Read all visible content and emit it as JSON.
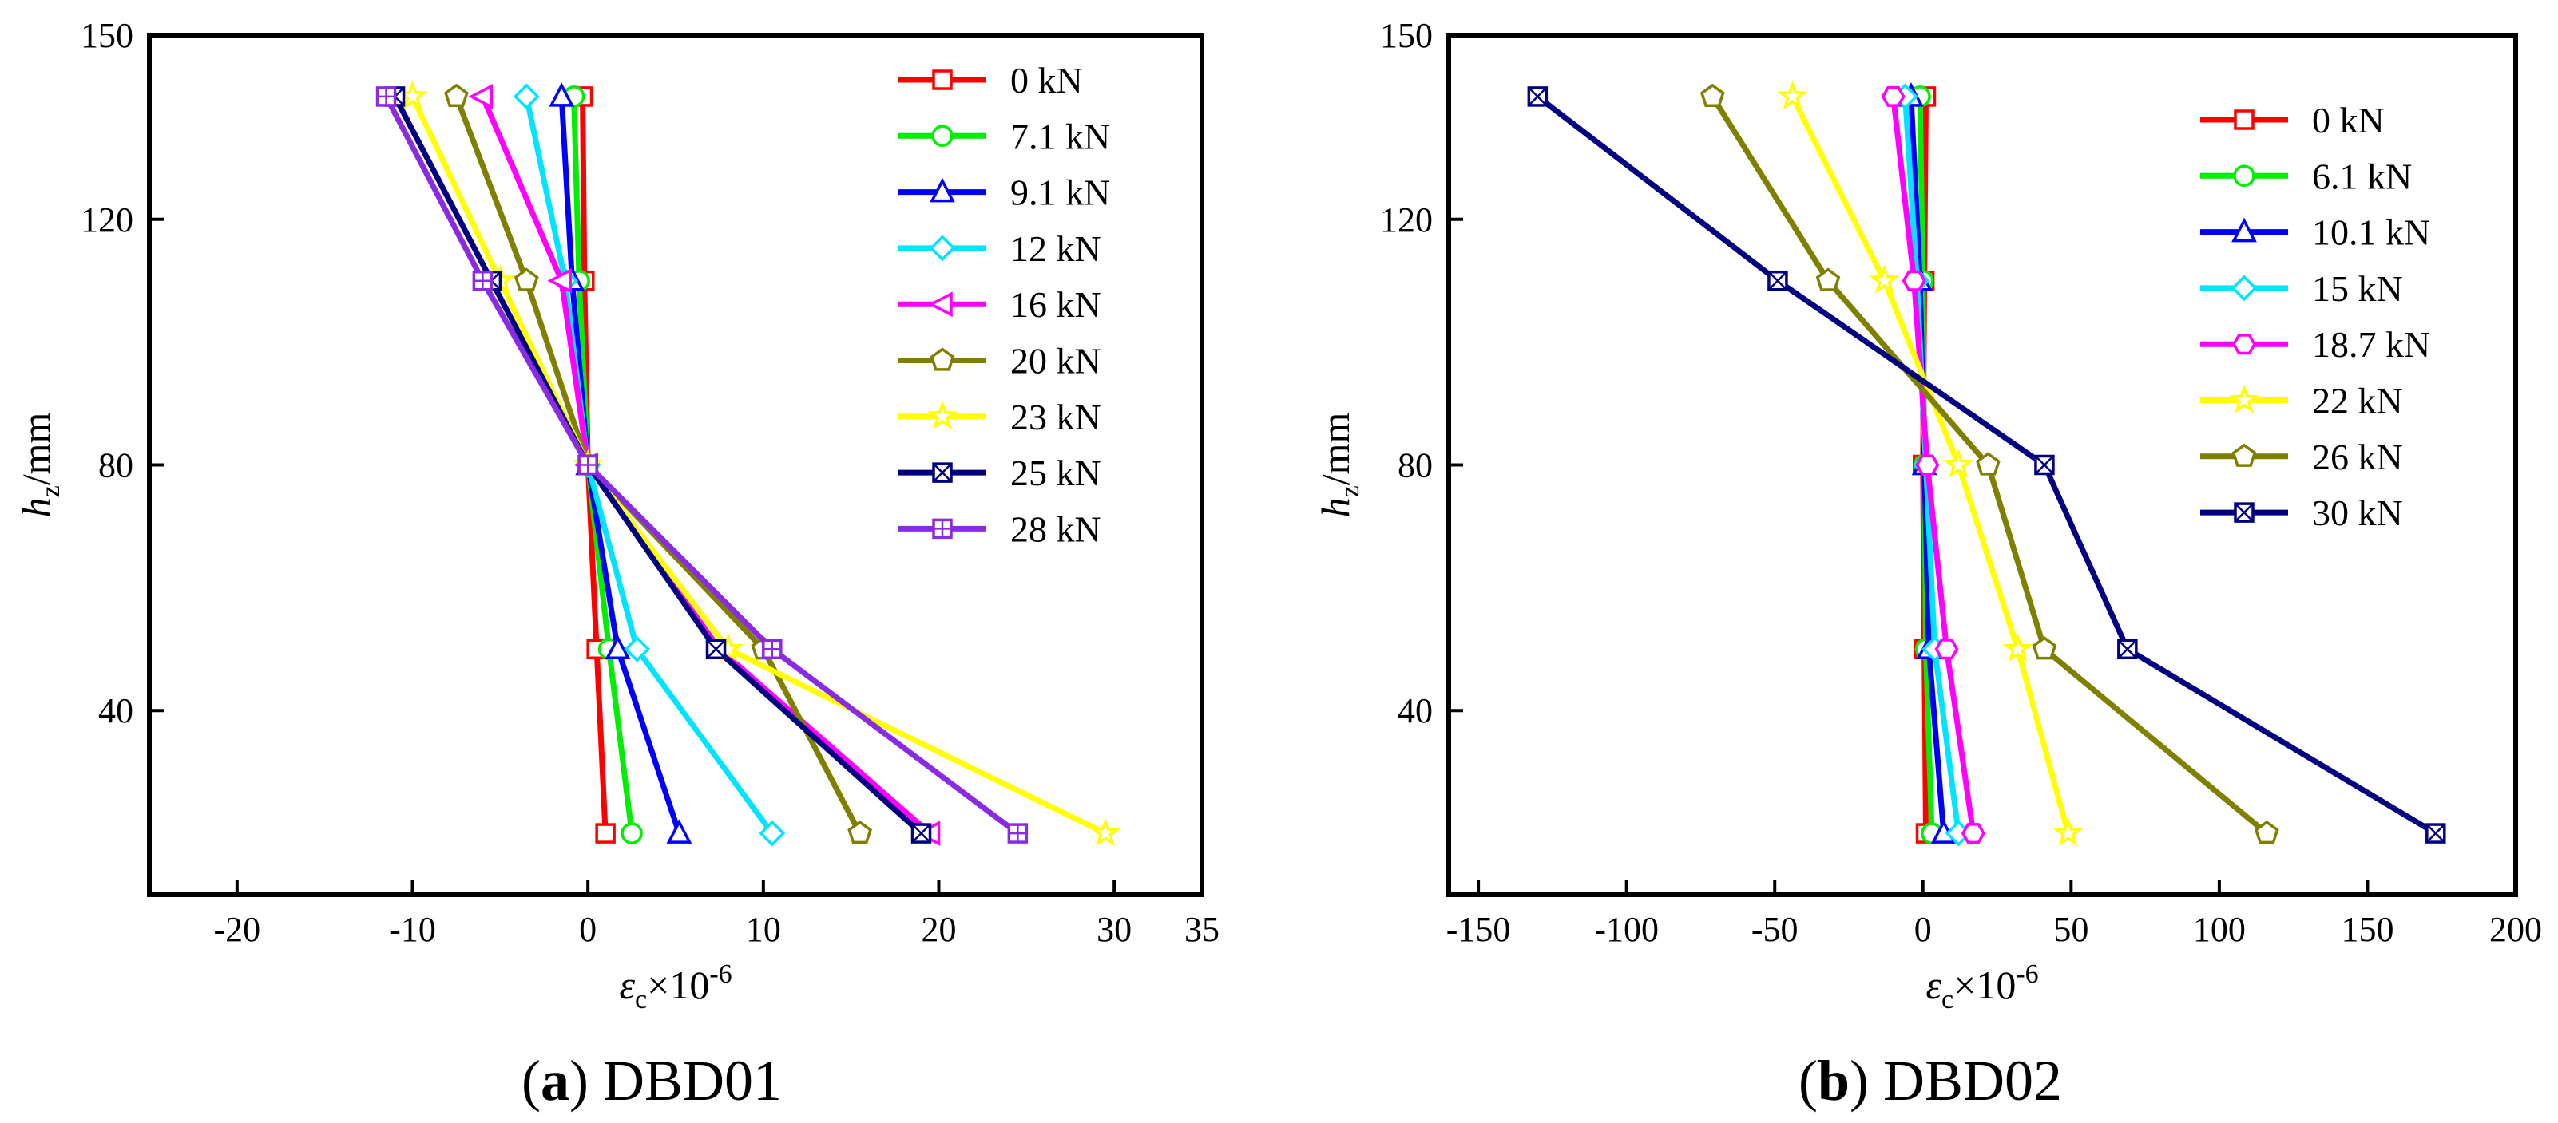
{
  "chart_data": [
    {
      "type": "line",
      "panel_label": "(a)",
      "caption_letter": "a",
      "caption_name": "DBD01",
      "xlabel_symbol": "ε",
      "xlabel_sub": "c",
      "xlabel_rest": "×10",
      "xlabel_exp": "-6",
      "ylabel_symbol": "h",
      "ylabel_sub": "z",
      "ylabel_rest": "/mm",
      "xlim": [
        -25,
        35
      ],
      "ylim": [
        10,
        150
      ],
      "xticks": [
        -20,
        -10,
        0,
        10,
        20,
        30,
        35
      ],
      "yticks": [
        40,
        80,
        120,
        150
      ],
      "y": [
        20,
        50,
        80,
        110,
        140
      ],
      "series": [
        {
          "name": "0 kN",
          "color": "#ff0000",
          "marker": "square",
          "x": [
            1,
            0.5,
            0,
            -0.2,
            -0.3
          ]
        },
        {
          "name": "7.1 kN",
          "color": "#00ee00",
          "marker": "circle",
          "x": [
            2.5,
            1.2,
            0,
            -0.5,
            -0.8
          ]
        },
        {
          "name": "9.1 kN",
          "color": "#0000ff",
          "marker": "triangle-up",
          "x": [
            5.2,
            1.7,
            0,
            -0.9,
            -1.5
          ]
        },
        {
          "name": "12 kN",
          "color": "#00e5ff",
          "marker": "diamond",
          "x": [
            10.5,
            2.8,
            0,
            -1.3,
            -3.5
          ]
        },
        {
          "name": "16 kN",
          "color": "#ff00ff",
          "marker": "triangle-left",
          "x": [
            19.5,
            7.5,
            0,
            -1.5,
            -6
          ]
        },
        {
          "name": "20 kN",
          "color": "#808000",
          "marker": "pentagon",
          "x": [
            15.5,
            10,
            0,
            -3.5,
            -7.5
          ]
        },
        {
          "name": "23 kN",
          "color": "#ffff00",
          "marker": "star",
          "x": [
            29.5,
            8,
            0,
            -5,
            -10
          ]
        },
        {
          "name": "25 kN",
          "color": "#000080",
          "marker": "square-x",
          "x": [
            19,
            7.3,
            0,
            -5.5,
            -11
          ]
        },
        {
          "name": "28 kN",
          "color": "#8a2be2",
          "marker": "square-plus",
          "x": [
            24.5,
            10.5,
            0,
            -6,
            -11.5
          ]
        }
      ]
    },
    {
      "type": "line",
      "panel_label": "(b)",
      "caption_letter": "b",
      "caption_name": "DBD02",
      "xlabel_symbol": "ε",
      "xlabel_sub": "c",
      "xlabel_rest": "×10",
      "xlabel_exp": "-6",
      "ylabel_symbol": "h",
      "ylabel_sub": "z",
      "ylabel_rest": "/mm",
      "xlim": [
        -160,
        200
      ],
      "ylim": [
        10,
        150
      ],
      "xticks": [
        -150,
        -100,
        -50,
        0,
        50,
        100,
        150,
        200
      ],
      "yticks": [
        40,
        80,
        120,
        150
      ],
      "y": [
        20,
        50,
        80,
        110,
        140
      ],
      "series": [
        {
          "name": "0 kN",
          "color": "#ff0000",
          "marker": "square",
          "x": [
            1,
            0.5,
            0,
            0.5,
            1
          ]
        },
        {
          "name": "6.1 kN",
          "color": "#00ee00",
          "marker": "circle",
          "x": [
            3,
            1,
            0.5,
            0,
            -1
          ]
        },
        {
          "name": "10.1 kN",
          "color": "#0000ff",
          "marker": "triangle-up",
          "x": [
            7,
            2,
            0.5,
            -1,
            -4
          ]
        },
        {
          "name": "15 kN",
          "color": "#00e5ff",
          "marker": "diamond",
          "x": [
            12,
            4,
            1,
            -2,
            -6
          ]
        },
        {
          "name": "18.7 kN",
          "color": "#ff00ff",
          "marker": "hexagon",
          "x": [
            17,
            8,
            1.5,
            -3,
            -10
          ]
        },
        {
          "name": "22 kN",
          "color": "#ffff00",
          "marker": "star",
          "x": [
            49,
            32,
            12,
            -13,
            -44
          ]
        },
        {
          "name": "26 kN",
          "color": "#808000",
          "marker": "pentagon",
          "x": [
            116,
            41,
            22,
            -32,
            -71
          ]
        },
        {
          "name": "30 kN",
          "color": "#000080",
          "marker": "square-x",
          "x": [
            173,
            69,
            41,
            -49,
            -130
          ]
        }
      ]
    }
  ]
}
